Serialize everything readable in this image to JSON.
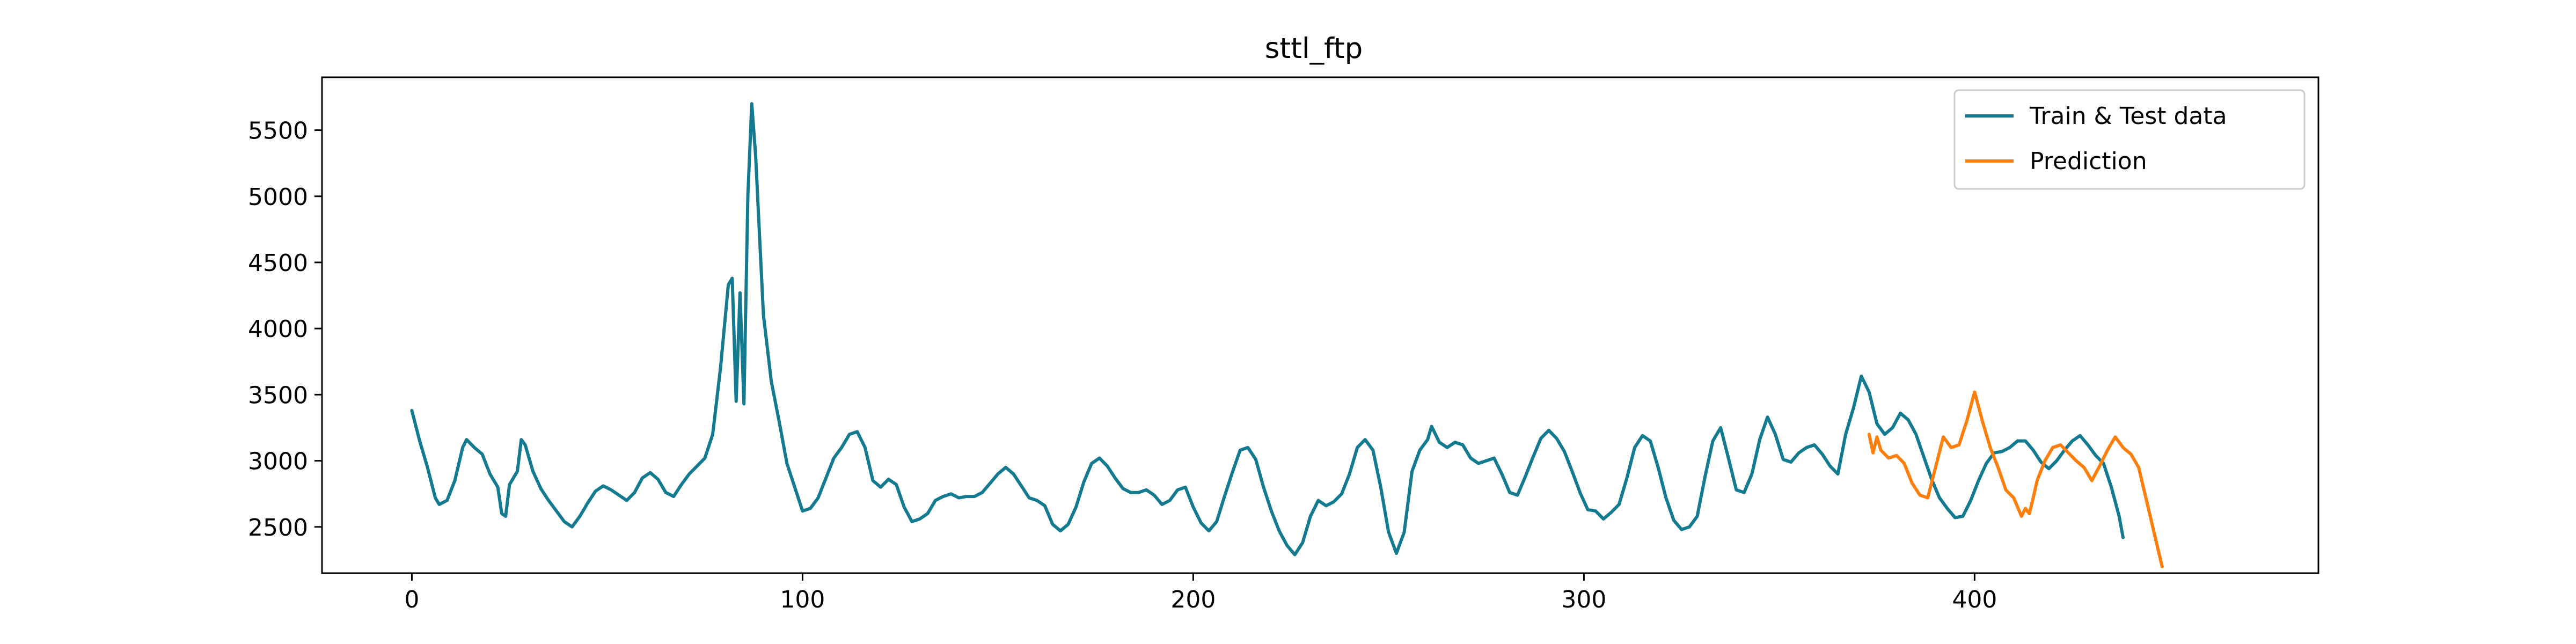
{
  "chart_data": {
    "type": "line",
    "title": "sttl_ftp",
    "xlabel": "",
    "ylabel": "",
    "xlim": [
      -23,
      488
    ],
    "ylim": [
      2150,
      5900
    ],
    "xticks": [
      0,
      100,
      200,
      300,
      400
    ],
    "yticks": [
      2500,
      3000,
      3500,
      4000,
      4500,
      5000,
      5500
    ],
    "grid": false,
    "legend": "top-right",
    "series": [
      {
        "name": "Train & Test data",
        "color": "#137a8f",
        "points": [
          [
            0,
            3380
          ],
          [
            2,
            3150
          ],
          [
            4,
            2950
          ],
          [
            6,
            2720
          ],
          [
            7,
            2670
          ],
          [
            9,
            2700
          ],
          [
            11,
            2850
          ],
          [
            13,
            3100
          ],
          [
            14,
            3160
          ],
          [
            16,
            3100
          ],
          [
            18,
            3050
          ],
          [
            20,
            2900
          ],
          [
            22,
            2800
          ],
          [
            23,
            2600
          ],
          [
            24,
            2580
          ],
          [
            25,
            2820
          ],
          [
            27,
            2920
          ],
          [
            28,
            3160
          ],
          [
            29,
            3120
          ],
          [
            31,
            2920
          ],
          [
            33,
            2790
          ],
          [
            35,
            2700
          ],
          [
            37,
            2620
          ],
          [
            39,
            2540
          ],
          [
            41,
            2500
          ],
          [
            43,
            2580
          ],
          [
            45,
            2680
          ],
          [
            47,
            2770
          ],
          [
            49,
            2810
          ],
          [
            51,
            2780
          ],
          [
            53,
            2740
          ],
          [
            55,
            2700
          ],
          [
            57,
            2760
          ],
          [
            59,
            2870
          ],
          [
            61,
            2910
          ],
          [
            63,
            2860
          ],
          [
            65,
            2760
          ],
          [
            67,
            2730
          ],
          [
            69,
            2820
          ],
          [
            71,
            2900
          ],
          [
            73,
            2960
          ],
          [
            75,
            3020
          ],
          [
            77,
            3200
          ],
          [
            79,
            3700
          ],
          [
            81,
            4330
          ],
          [
            82,
            4380
          ],
          [
            83,
            3450
          ],
          [
            84,
            4270
          ],
          [
            85,
            3430
          ],
          [
            86,
            5000
          ],
          [
            87,
            5700
          ],
          [
            88,
            5300
          ],
          [
            89,
            4700
          ],
          [
            90,
            4100
          ],
          [
            92,
            3600
          ],
          [
            94,
            3300
          ],
          [
            96,
            2980
          ],
          [
            98,
            2800
          ],
          [
            100,
            2620
          ],
          [
            102,
            2640
          ],
          [
            104,
            2720
          ],
          [
            106,
            2870
          ],
          [
            108,
            3020
          ],
          [
            110,
            3100
          ],
          [
            112,
            3200
          ],
          [
            114,
            3220
          ],
          [
            116,
            3100
          ],
          [
            118,
            2850
          ],
          [
            120,
            2800
          ],
          [
            122,
            2860
          ],
          [
            124,
            2820
          ],
          [
            126,
            2650
          ],
          [
            128,
            2540
          ],
          [
            130,
            2560
          ],
          [
            132,
            2600
          ],
          [
            134,
            2700
          ],
          [
            136,
            2730
          ],
          [
            138,
            2750
          ],
          [
            140,
            2720
          ],
          [
            142,
            2730
          ],
          [
            144,
            2730
          ],
          [
            146,
            2760
          ],
          [
            148,
            2830
          ],
          [
            150,
            2900
          ],
          [
            152,
            2950
          ],
          [
            154,
            2900
          ],
          [
            156,
            2810
          ],
          [
            158,
            2720
          ],
          [
            160,
            2700
          ],
          [
            162,
            2660
          ],
          [
            164,
            2520
          ],
          [
            166,
            2470
          ],
          [
            168,
            2520
          ],
          [
            170,
            2650
          ],
          [
            172,
            2840
          ],
          [
            174,
            2980
          ],
          [
            176,
            3020
          ],
          [
            178,
            2960
          ],
          [
            180,
            2870
          ],
          [
            182,
            2790
          ],
          [
            184,
            2760
          ],
          [
            186,
            2760
          ],
          [
            188,
            2780
          ],
          [
            190,
            2740
          ],
          [
            192,
            2670
          ],
          [
            194,
            2700
          ],
          [
            196,
            2780
          ],
          [
            198,
            2800
          ],
          [
            200,
            2650
          ],
          [
            202,
            2530
          ],
          [
            204,
            2470
          ],
          [
            206,
            2540
          ],
          [
            208,
            2730
          ],
          [
            210,
            2910
          ],
          [
            212,
            3080
          ],
          [
            214,
            3100
          ],
          [
            216,
            3010
          ],
          [
            218,
            2800
          ],
          [
            220,
            2620
          ],
          [
            222,
            2470
          ],
          [
            224,
            2360
          ],
          [
            226,
            2290
          ],
          [
            228,
            2380
          ],
          [
            230,
            2580
          ],
          [
            232,
            2700
          ],
          [
            234,
            2660
          ],
          [
            236,
            2690
          ],
          [
            238,
            2750
          ],
          [
            240,
            2900
          ],
          [
            242,
            3100
          ],
          [
            244,
            3160
          ],
          [
            246,
            3080
          ],
          [
            248,
            2800
          ],
          [
            250,
            2460
          ],
          [
            252,
            2300
          ],
          [
            254,
            2460
          ],
          [
            256,
            2920
          ],
          [
            258,
            3080
          ],
          [
            260,
            3160
          ],
          [
            261,
            3260
          ],
          [
            263,
            3140
          ],
          [
            265,
            3100
          ],
          [
            267,
            3140
          ],
          [
            269,
            3120
          ],
          [
            271,
            3020
          ],
          [
            273,
            2980
          ],
          [
            275,
            3000
          ],
          [
            277,
            3020
          ],
          [
            279,
            2900
          ],
          [
            281,
            2760
          ],
          [
            283,
            2740
          ],
          [
            285,
            2880
          ],
          [
            287,
            3030
          ],
          [
            289,
            3170
          ],
          [
            291,
            3230
          ],
          [
            293,
            3170
          ],
          [
            295,
            3070
          ],
          [
            297,
            2920
          ],
          [
            299,
            2760
          ],
          [
            301,
            2630
          ],
          [
            303,
            2620
          ],
          [
            305,
            2560
          ],
          [
            307,
            2610
          ],
          [
            309,
            2670
          ],
          [
            311,
            2870
          ],
          [
            313,
            3100
          ],
          [
            315,
            3190
          ],
          [
            317,
            3150
          ],
          [
            319,
            2950
          ],
          [
            321,
            2720
          ],
          [
            323,
            2550
          ],
          [
            325,
            2480
          ],
          [
            327,
            2500
          ],
          [
            329,
            2580
          ],
          [
            331,
            2880
          ],
          [
            333,
            3150
          ],
          [
            335,
            3250
          ],
          [
            337,
            3020
          ],
          [
            339,
            2780
          ],
          [
            341,
            2760
          ],
          [
            343,
            2900
          ],
          [
            345,
            3160
          ],
          [
            347,
            3330
          ],
          [
            349,
            3200
          ],
          [
            351,
            3010
          ],
          [
            353,
            2990
          ],
          [
            355,
            3060
          ],
          [
            357,
            3100
          ],
          [
            359,
            3120
          ],
          [
            361,
            3050
          ],
          [
            363,
            2960
          ],
          [
            365,
            2900
          ],
          [
            367,
            3200
          ],
          [
            369,
            3400
          ],
          [
            371,
            3640
          ],
          [
            373,
            3520
          ],
          [
            375,
            3280
          ],
          [
            377,
            3200
          ],
          [
            379,
            3250
          ],
          [
            381,
            3360
          ],
          [
            383,
            3310
          ],
          [
            385,
            3200
          ],
          [
            387,
            3030
          ],
          [
            389,
            2860
          ],
          [
            391,
            2720
          ],
          [
            393,
            2640
          ],
          [
            395,
            2570
          ],
          [
            397,
            2580
          ],
          [
            399,
            2700
          ],
          [
            401,
            2850
          ],
          [
            403,
            2980
          ],
          [
            405,
            3060
          ],
          [
            407,
            3070
          ],
          [
            409,
            3100
          ],
          [
            411,
            3150
          ],
          [
            413,
            3150
          ],
          [
            415,
            3080
          ],
          [
            417,
            2990
          ],
          [
            419,
            2940
          ],
          [
            421,
            3000
          ],
          [
            423,
            3080
          ],
          [
            425,
            3150
          ],
          [
            427,
            3190
          ],
          [
            429,
            3120
          ],
          [
            431,
            3040
          ],
          [
            433,
            2980
          ],
          [
            435,
            2800
          ],
          [
            437,
            2580
          ],
          [
            438,
            2420
          ]
        ]
      },
      {
        "name": "Prediction",
        "color": "#ff7f0e",
        "points": [
          [
            373,
            3200
          ],
          [
            374,
            3060
          ],
          [
            375,
            3180
          ],
          [
            376,
            3080
          ],
          [
            378,
            3020
          ],
          [
            380,
            3040
          ],
          [
            382,
            2980
          ],
          [
            384,
            2830
          ],
          [
            386,
            2740
          ],
          [
            388,
            2720
          ],
          [
            390,
            2950
          ],
          [
            392,
            3180
          ],
          [
            394,
            3100
          ],
          [
            396,
            3120
          ],
          [
            398,
            3300
          ],
          [
            400,
            3520
          ],
          [
            402,
            3300
          ],
          [
            404,
            3100
          ],
          [
            406,
            2950
          ],
          [
            408,
            2780
          ],
          [
            410,
            2720
          ],
          [
            412,
            2580
          ],
          [
            413,
            2640
          ],
          [
            414,
            2600
          ],
          [
            415,
            2720
          ],
          [
            416,
            2850
          ],
          [
            418,
            3000
          ],
          [
            420,
            3100
          ],
          [
            422,
            3120
          ],
          [
            424,
            3060
          ],
          [
            426,
            3000
          ],
          [
            428,
            2950
          ],
          [
            430,
            2850
          ],
          [
            432,
            2960
          ],
          [
            434,
            3080
          ],
          [
            436,
            3180
          ],
          [
            438,
            3100
          ],
          [
            440,
            3050
          ],
          [
            442,
            2950
          ],
          [
            444,
            2700
          ],
          [
            446,
            2450
          ],
          [
            448,
            2200
          ]
        ]
      }
    ]
  }
}
